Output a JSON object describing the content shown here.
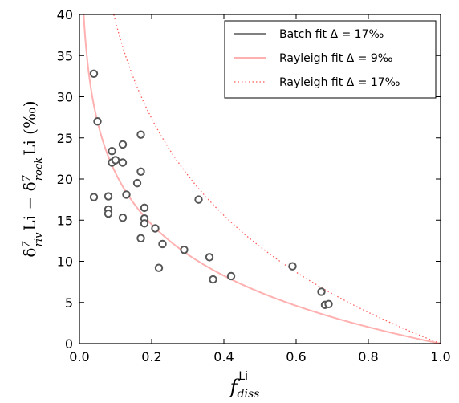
{
  "chart_data": {
    "type": "scatter",
    "title": "",
    "xlabel": {
      "main": "f",
      "sub": "diss",
      "sup": "Li"
    },
    "ylabel": {
      "delta1": "δ",
      "sup1": "7",
      "sub1": "riv",
      "mid": "Li − ",
      "delta2": "δ",
      "sup2": "7",
      "sub2": "rock",
      "tail": "Li (‰)"
    },
    "xlim": [
      0.0,
      1.0
    ],
    "ylim": [
      0,
      40
    ],
    "x_ticks": [
      "0.0",
      "0.2",
      "0.4",
      "0.6",
      "0.8",
      "1.0"
    ],
    "y_ticks": [
      "0",
      "5",
      "10",
      "15",
      "20",
      "25",
      "30",
      "35",
      "40"
    ],
    "grid": false,
    "legend_position": "top-right",
    "series": [
      {
        "name": "Batch fit Δ = 17‰",
        "kind": "line",
        "style": "solid",
        "color": "#808080",
        "model": "batch",
        "delta": 17,
        "points": []
      },
      {
        "name": "Rayleigh fit Δ = 9‰",
        "kind": "line",
        "style": "solid",
        "color": "#ffb0b0",
        "model": "rayleigh",
        "delta": 9
      },
      {
        "name": "Rayleigh fit Δ = 17‰",
        "kind": "line",
        "style": "dotted",
        "color": "#ff5a5a",
        "model": "rayleigh",
        "delta": 17
      },
      {
        "name": "",
        "kind": "scatter",
        "marker_edge": "#555555",
        "points": [
          [
            0.04,
            32.8
          ],
          [
            0.05,
            27.0
          ],
          [
            0.04,
            17.8
          ],
          [
            0.08,
            17.9
          ],
          [
            0.08,
            16.3
          ],
          [
            0.08,
            15.8
          ],
          [
            0.09,
            23.4
          ],
          [
            0.09,
            22.0
          ],
          [
            0.1,
            22.3
          ],
          [
            0.12,
            24.2
          ],
          [
            0.12,
            22.0
          ],
          [
            0.12,
            15.3
          ],
          [
            0.13,
            18.1
          ],
          [
            0.16,
            19.5
          ],
          [
            0.17,
            25.4
          ],
          [
            0.17,
            20.9
          ],
          [
            0.17,
            12.8
          ],
          [
            0.18,
            16.5
          ],
          [
            0.18,
            15.2
          ],
          [
            0.18,
            14.6
          ],
          [
            0.21,
            14.0
          ],
          [
            0.22,
            9.2
          ],
          [
            0.23,
            12.1
          ],
          [
            0.29,
            11.4
          ],
          [
            0.33,
            17.5
          ],
          [
            0.36,
            10.5
          ],
          [
            0.37,
            7.8
          ],
          [
            0.42,
            8.2
          ],
          [
            0.59,
            9.4
          ],
          [
            0.67,
            6.3
          ],
          [
            0.68,
            4.7
          ],
          [
            0.69,
            4.8
          ]
        ]
      }
    ]
  }
}
